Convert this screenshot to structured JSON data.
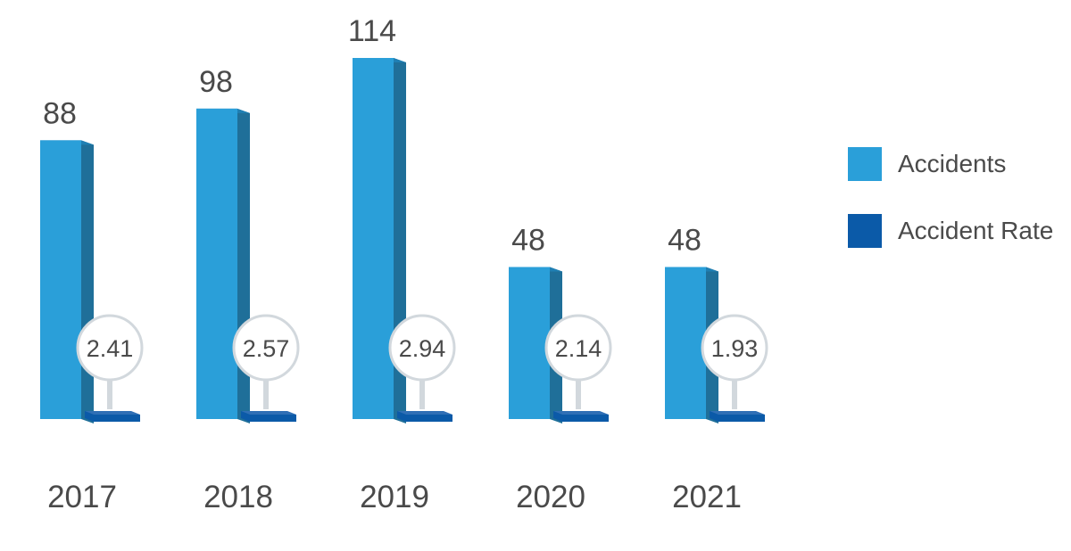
{
  "chart_data": {
    "type": "bar",
    "categories": [
      "2017",
      "2018",
      "2019",
      "2020",
      "2021"
    ],
    "series": [
      {
        "name": "Accidents",
        "values": [
          88,
          98,
          114,
          48,
          48
        ]
      },
      {
        "name": "Accident Rate",
        "values": [
          2.41,
          2.57,
          2.94,
          2.14,
          1.93
        ]
      }
    ],
    "value_labels": [
      "88",
      "98",
      "114",
      "48",
      "48"
    ],
    "rate_labels": [
      "2.41",
      "2.57",
      "2.94",
      "2.14",
      "1.93"
    ],
    "legend": {
      "position": "right",
      "items": [
        {
          "label": "Accidents",
          "color": "#2a9fd9"
        },
        {
          "label": "Accident Rate",
          "color": "#0b5aa8"
        }
      ]
    },
    "ylim": [
      0,
      114
    ],
    "grid": false
  },
  "colors": {
    "accidents_front": "#2a9fd9",
    "accidents_side": "#1f6f99",
    "accidents_top": "#1f7fb3",
    "rate_front": "#0b5aa8",
    "rate_top": "#2f6fb5",
    "pin_stem": "#d2d8dd",
    "bubble_border": "#d2d8dd",
    "text": "#4a4a4a"
  },
  "icons": {
    "legend_accidents": "square-swatch",
    "legend_rate": "square-swatch"
  }
}
